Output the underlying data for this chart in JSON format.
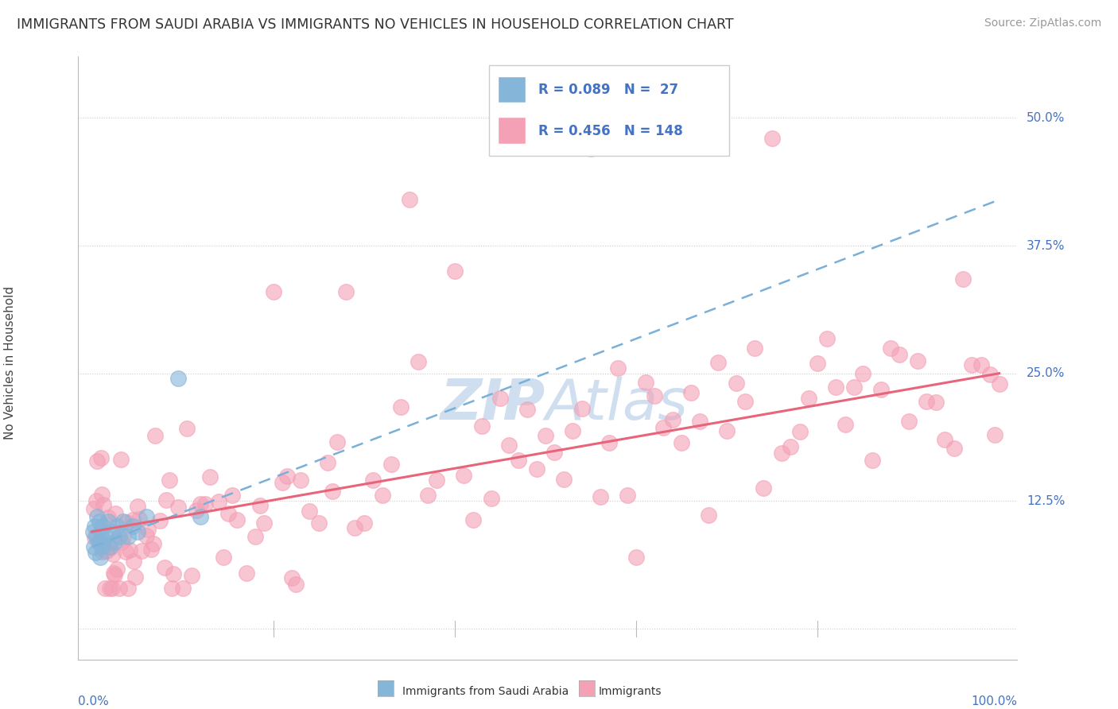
{
  "title": "IMMIGRANTS FROM SAUDI ARABIA VS IMMIGRANTS NO VEHICLES IN HOUSEHOLD CORRELATION CHART",
  "source": "Source: ZipAtlas.com",
  "ylabel": "No Vehicles in Household",
  "legend_r1": "R = 0.089",
  "legend_n1": "N =  27",
  "legend_r2": "R = 0.456",
  "legend_n2": "N = 148",
  "legend_label1": "Immigrants from Saudi Arabia",
  "legend_label2": "Immigrants",
  "blue_color": "#85b5d9",
  "pink_color": "#f4a0b5",
  "blue_line_color": "#7ab0d8",
  "pink_line_color": "#e8647a",
  "axis_label_color": "#4472c4",
  "watermark_color": "#d0dff0",
  "ylim_labels": [
    "12.5%",
    "25.0%",
    "37.5%",
    "50.0%"
  ],
  "xlim_left": "0.0%",
  "xlim_right": "100.0%"
}
